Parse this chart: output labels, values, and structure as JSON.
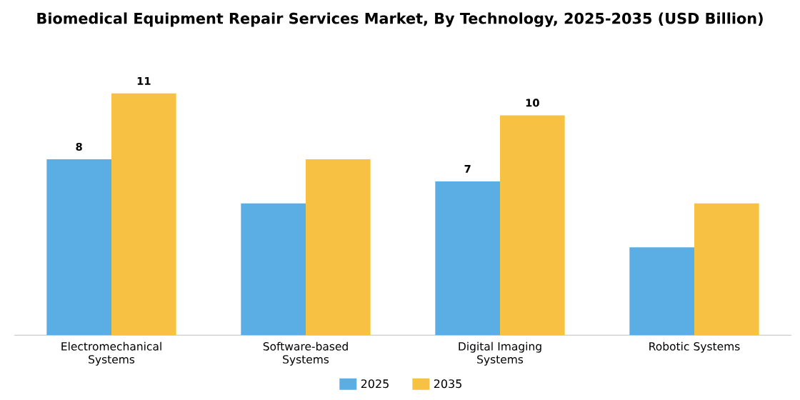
{
  "chart_data": {
    "type": "bar",
    "title": "Biomedical Equipment Repair Services Market, By Technology, 2025-2035 (USD Billion)",
    "categories": [
      "Electromechanical Systems",
      "Software-based Systems",
      "Digital Imaging Systems",
      "Robotic Systems"
    ],
    "series": [
      {
        "name": "2025",
        "color": "#5aaee3",
        "values": [
          8,
          6,
          7,
          4
        ],
        "value_labels": [
          "8",
          null,
          "7",
          null
        ]
      },
      {
        "name": "2035",
        "color": "#f7c244",
        "values": [
          11,
          8,
          10,
          6
        ],
        "value_labels": [
          "11",
          null,
          "10",
          null
        ]
      }
    ],
    "legend": "bottom"
  }
}
